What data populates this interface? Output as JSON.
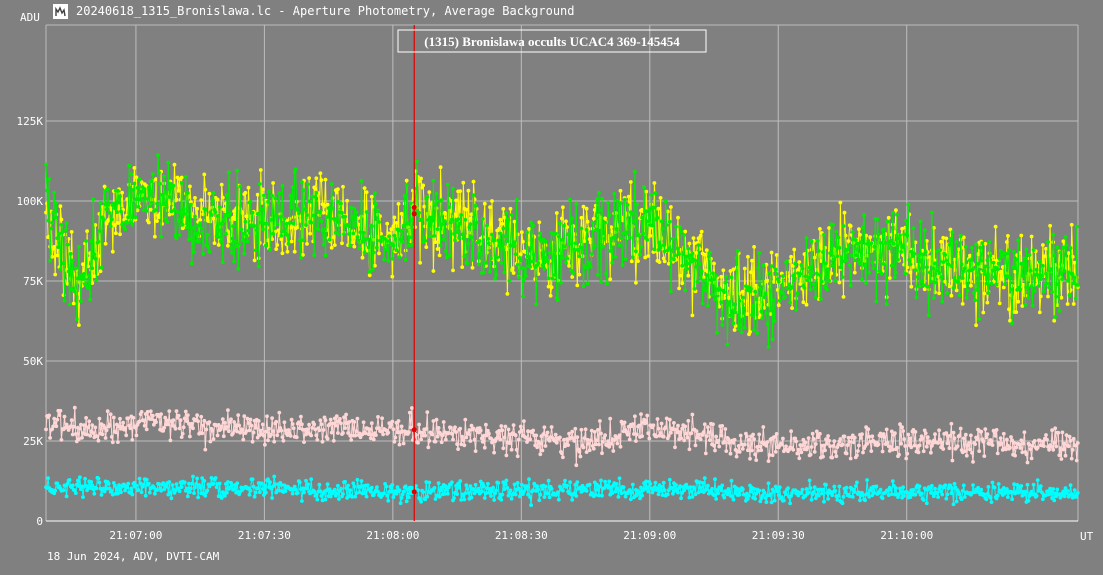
{
  "window": {
    "title": "20240618_1315_Bronislawa.lc - Aperture Photometry, Average Background",
    "icon": "light-curve-icon"
  },
  "footer": {
    "text": "18 Jun 2024, ADV, DVTI-CAM"
  },
  "colors": {
    "background": "#808080",
    "grid": "#bdbdbd",
    "cursor": "#e00000",
    "target": "#ffff00",
    "comparison1": "#00ee00",
    "comparison2": "#ffd6d6",
    "comparison3": "#00ffff"
  },
  "chart_data": {
    "type": "line",
    "title": "(1315) Bronislawa occults UCAC4 369-145454",
    "ylabel": "ADU",
    "xlabel": "UT",
    "ylim": [
      0,
      155000
    ],
    "xlim": [
      "21:06:39",
      "21:10:40"
    ],
    "y_ticks": [
      {
        "value": 0,
        "label": "0"
      },
      {
        "value": 25000,
        "label": "25K"
      },
      {
        "value": 50000,
        "label": "50K"
      },
      {
        "value": 75000,
        "label": "75K"
      },
      {
        "value": 100000,
        "label": "100K"
      },
      {
        "value": 125000,
        "label": "125K"
      }
    ],
    "x_ticks": [
      {
        "value": "21:07:00",
        "label": "21:07:00"
      },
      {
        "value": "21:07:30",
        "label": "21:07:30"
      },
      {
        "value": "21:08:00",
        "label": "21:08:00"
      },
      {
        "value": "21:08:30",
        "label": "21:08:30"
      },
      {
        "value": "21:09:00",
        "label": "21:09:00"
      },
      {
        "value": "21:09:30",
        "label": "21:09:30"
      },
      {
        "value": "21:10:00",
        "label": "21:10:00"
      }
    ],
    "cursor_time": "21:08:05",
    "grid": true,
    "sample_interval_s": 0.24,
    "series": [
      {
        "color_key": "target",
        "trend": [
          [
            "21:06:39",
            98000
          ],
          [
            "21:06:47",
            70000
          ],
          [
            "21:06:53",
            95000
          ],
          [
            "21:07:00",
            102000
          ],
          [
            "21:07:15",
            96000
          ],
          [
            "21:07:30",
            93000
          ],
          [
            "21:07:45",
            97000
          ],
          [
            "21:08:00",
            87000
          ],
          [
            "21:08:05",
            98000
          ],
          [
            "21:08:20",
            90000
          ],
          [
            "21:08:35",
            82000
          ],
          [
            "21:08:50",
            92000
          ],
          [
            "21:09:00",
            95000
          ],
          [
            "21:09:10",
            80000
          ],
          [
            "21:09:20",
            70000
          ],
          [
            "21:09:35",
            76000
          ],
          [
            "21:09:45",
            86000
          ],
          [
            "21:10:00",
            85000
          ],
          [
            "21:10:10",
            78000
          ],
          [
            "21:10:40",
            78000
          ]
        ],
        "noise_sd": 9000
      },
      {
        "color_key": "comparison1",
        "trend": [
          [
            "21:06:39",
            100000
          ],
          [
            "21:06:47",
            72000
          ],
          [
            "21:06:53",
            97000
          ],
          [
            "21:07:00",
            100000
          ],
          [
            "21:07:15",
            95000
          ],
          [
            "21:07:30",
            93000
          ],
          [
            "21:07:45",
            96000
          ],
          [
            "21:08:00",
            88000
          ],
          [
            "21:08:05",
            96000
          ],
          [
            "21:08:20",
            88000
          ],
          [
            "21:08:35",
            80000
          ],
          [
            "21:08:50",
            91000
          ],
          [
            "21:09:00",
            96000
          ],
          [
            "21:09:10",
            80000
          ],
          [
            "21:09:20",
            68000
          ],
          [
            "21:09:35",
            75000
          ],
          [
            "21:09:45",
            84000
          ],
          [
            "21:10:00",
            84000
          ],
          [
            "21:10:10",
            77000
          ],
          [
            "21:10:40",
            79000
          ]
        ],
        "noise_sd": 9000
      },
      {
        "color_key": "comparison2",
        "trend": [
          [
            "21:06:39",
            32000
          ],
          [
            "21:06:50",
            27000
          ],
          [
            "21:07:00",
            31000
          ],
          [
            "21:07:30",
            28000
          ],
          [
            "21:08:00",
            29000
          ],
          [
            "21:08:30",
            26000
          ],
          [
            "21:08:45",
            24000
          ],
          [
            "21:09:00",
            30000
          ],
          [
            "21:09:20",
            24000
          ],
          [
            "21:09:45",
            24000
          ],
          [
            "21:10:00",
            25000
          ],
          [
            "21:10:40",
            23000
          ]
        ],
        "noise_sd": 3500
      },
      {
        "color_key": "comparison3",
        "trend": [
          [
            "21:06:39",
            10000
          ],
          [
            "21:07:00",
            11000
          ],
          [
            "21:07:30",
            10000
          ],
          [
            "21:08:00",
            9000
          ],
          [
            "21:08:30",
            9500
          ],
          [
            "21:09:00",
            10000
          ],
          [
            "21:09:30",
            8500
          ],
          [
            "21:10:00",
            9000
          ],
          [
            "21:10:40",
            9000
          ]
        ],
        "noise_sd": 2200
      }
    ]
  }
}
